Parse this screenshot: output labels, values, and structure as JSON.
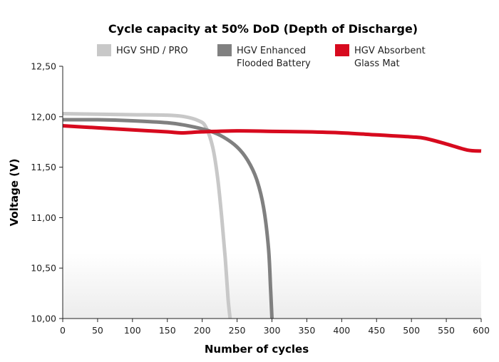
{
  "chart_data": {
    "type": "line",
    "title": "Cycle capacity at 50% DoD (Depth of Discharge)",
    "xlabel": "Number of cycles",
    "ylabel": "Voltage (V)",
    "xlim": [
      0,
      600
    ],
    "ylim": [
      10.0,
      12.5
    ],
    "x_ticks": [
      0,
      50,
      100,
      150,
      200,
      250,
      300,
      350,
      400,
      450,
      500,
      550,
      600
    ],
    "y_ticks": [
      10.0,
      10.5,
      11.0,
      11.5,
      12.0,
      12.5
    ],
    "y_tick_labels": [
      "10,00",
      "10,50",
      "11,00",
      "11,50",
      "12,00",
      "12,50"
    ],
    "x_tick_labels": [
      "0",
      "50",
      "100",
      "150",
      "200",
      "250",
      "300",
      "350",
      "400",
      "450",
      "500",
      "550",
      "600"
    ],
    "grid": false,
    "legend_position": "top",
    "series": [
      {
        "name": "HGV SHD / PRO",
        "legend_lines": [
          "HGV SHD / PRO"
        ],
        "color": "#c8c8c8",
        "points": [
          [
            0,
            12.03
          ],
          [
            50,
            12.025
          ],
          [
            100,
            12.02
          ],
          [
            150,
            12.015
          ],
          [
            175,
            12.0
          ],
          [
            195,
            11.96
          ],
          [
            205,
            11.9
          ],
          [
            215,
            11.7
          ],
          [
            222,
            11.4
          ],
          [
            228,
            11.0
          ],
          [
            233,
            10.6
          ],
          [
            237,
            10.2
          ],
          [
            240,
            10.0
          ]
        ]
      },
      {
        "name": "HGV Enhanced Flooded Battery",
        "legend_lines": [
          "HGV Enhanced",
          "Flooded Battery"
        ],
        "color": "#808080",
        "points": [
          [
            0,
            11.97
          ],
          [
            50,
            11.97
          ],
          [
            100,
            11.96
          ],
          [
            150,
            11.94
          ],
          [
            180,
            11.91
          ],
          [
            210,
            11.86
          ],
          [
            230,
            11.8
          ],
          [
            250,
            11.7
          ],
          [
            265,
            11.57
          ],
          [
            278,
            11.38
          ],
          [
            288,
            11.1
          ],
          [
            295,
            10.7
          ],
          [
            298,
            10.3
          ],
          [
            300,
            10.0
          ]
        ]
      },
      {
        "name": "HGV Absorbent Glass Mat",
        "legend_lines": [
          "HGV Absorbent",
          "Glass Mat"
        ],
        "color": "#d70a1e",
        "points": [
          [
            0,
            11.91
          ],
          [
            50,
            11.89
          ],
          [
            100,
            11.87
          ],
          [
            150,
            11.85
          ],
          [
            170,
            11.84
          ],
          [
            200,
            11.85
          ],
          [
            250,
            11.86
          ],
          [
            300,
            11.855
          ],
          [
            350,
            11.85
          ],
          [
            400,
            11.84
          ],
          [
            450,
            11.82
          ],
          [
            500,
            11.8
          ],
          [
            520,
            11.785
          ],
          [
            550,
            11.73
          ],
          [
            580,
            11.67
          ],
          [
            600,
            11.66
          ]
        ]
      }
    ]
  }
}
